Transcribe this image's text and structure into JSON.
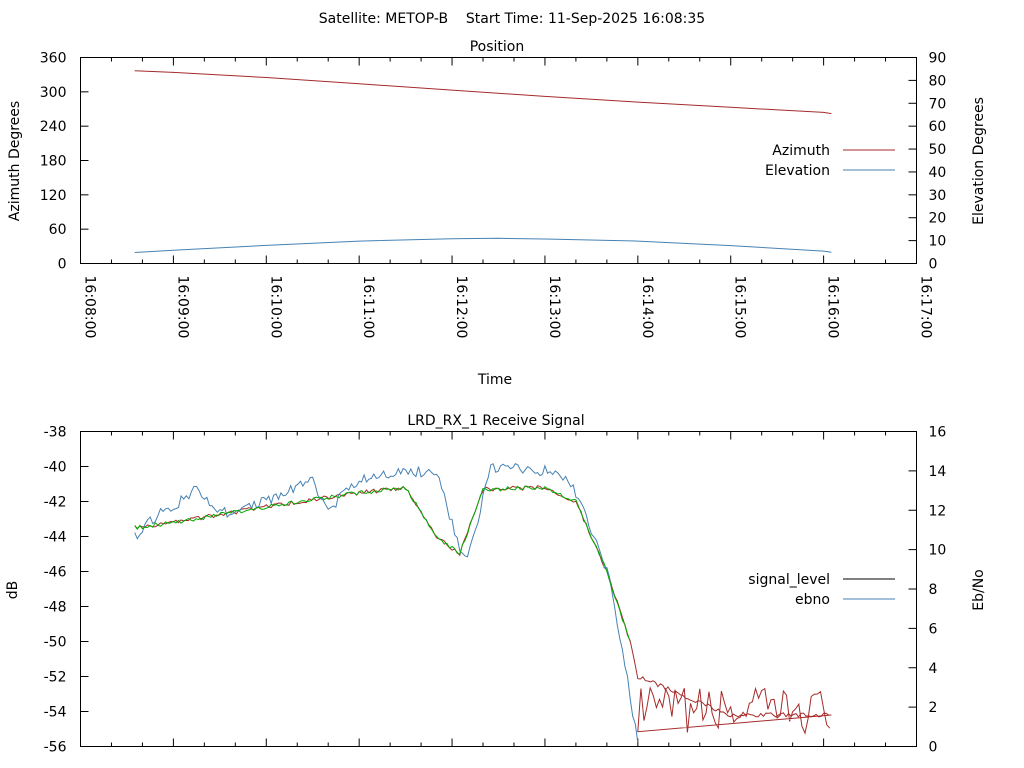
{
  "page_title": "Satellite: METOP-B    Start Time: 11-Sep-2025 16:08:35",
  "chart_data": [
    {
      "type": "line",
      "title": "Position",
      "xlabel": "Time",
      "ylabel": "Azimuth Degrees",
      "y2label": "Elevation Degrees",
      "xlim": [
        "16:08:00",
        "16:17:00"
      ],
      "x_ticks": [
        "16:08:00",
        "16:09:00",
        "16:10:00",
        "16:11:00",
        "16:12:00",
        "16:13:00",
        "16:14:00",
        "16:15:00",
        "16:16:00",
        "16:17:00"
      ],
      "ylim": [
        0,
        360
      ],
      "y_ticks": [
        "0",
        "60",
        "120",
        "180",
        "240",
        "300",
        "360"
      ],
      "y2lim": [
        0,
        90
      ],
      "y2_ticks": [
        "0",
        "10",
        "20",
        "30",
        "40",
        "50",
        "60",
        "70",
        "80",
        "90"
      ],
      "grid": false,
      "legend": "right",
      "series": [
        {
          "name": "Azimuth",
          "axis": "y",
          "color": "#a52a2a",
          "x": [
            "16:08:35",
            "16:09:00",
            "16:10:00",
            "16:11:00",
            "16:12:00",
            "16:13:00",
            "16:14:00",
            "16:15:00",
            "16:16:00",
            "16:16:05"
          ],
          "values": [
            337,
            334,
            325,
            314,
            303,
            292,
            282,
            273,
            264,
            262
          ]
        },
        {
          "name": "Elevation",
          "axis": "y2",
          "color": "#4682b4",
          "x": [
            "16:08:35",
            "16:09:00",
            "16:10:00",
            "16:11:00",
            "16:12:00",
            "16:12:30",
            "16:13:00",
            "16:14:00",
            "16:15:00",
            "16:16:00",
            "16:16:05"
          ],
          "values": [
            4.8,
            5.8,
            7.9,
            9.8,
            10.8,
            11.0,
            10.7,
            9.8,
            7.8,
            5.4,
            4.9
          ]
        }
      ]
    },
    {
      "type": "line",
      "title": "LRD_RX_1 Receive Signal",
      "xlabel": "",
      "ylabel": "dB",
      "y2label": "Eb/No",
      "xlim": [
        "16:08:00",
        "16:17:00"
      ],
      "ylim": [
        -56,
        -38
      ],
      "y_ticks": [
        "-56",
        "-54",
        "-52",
        "-50",
        "-48",
        "-46",
        "-44",
        "-42",
        "-40",
        "-38"
      ],
      "y2lim": [
        0,
        16
      ],
      "y2_ticks": [
        "0",
        "2",
        "4",
        "6",
        "8",
        "10",
        "12",
        "14",
        "16"
      ],
      "grid": false,
      "legend": "right",
      "series": [
        {
          "name": "signal_level",
          "axis": "y",
          "color": "#a52a2a",
          "x": [
            "16:08:35",
            "16:09:00",
            "16:10:00",
            "16:11:00",
            "16:11:30",
            "16:11:50",
            "16:12:05",
            "16:12:20",
            "16:13:00",
            "16:13:20",
            "16:13:40",
            "16:13:55",
            "16:14:00",
            "16:15:00",
            "16:16:00",
            "16:16:05"
          ],
          "values": [
            -43.5,
            -43.2,
            -42.3,
            -41.5,
            -41.2,
            -44.0,
            -45.0,
            -41.3,
            -41.2,
            -42.0,
            -46.0,
            -50.0,
            -52.0,
            -54.2,
            -54.2,
            -54.2
          ]
        },
        {
          "name": "ebno",
          "axis": "y2",
          "color": "#4682b4",
          "x": [
            "16:08:35",
            "16:08:50",
            "16:09:00",
            "16:09:15",
            "16:09:30",
            "16:10:00",
            "16:10:30",
            "16:10:40",
            "16:11:00",
            "16:11:30",
            "16:11:50",
            "16:12:05",
            "16:12:10",
            "16:12:25",
            "16:13:00",
            "16:13:15",
            "16:13:25",
            "16:13:40",
            "16:13:50",
            "16:14:00"
          ],
          "values": [
            10.6,
            11.8,
            12.2,
            13.1,
            11.8,
            12.5,
            13.5,
            12.0,
            13.6,
            14.0,
            13.9,
            10.0,
            9.5,
            14.2,
            14.0,
            13.6,
            12.0,
            9.0,
            5.0,
            0.2
          ]
        },
        {
          "name": "",
          "color": "#00aa00",
          "x": [
            "16:08:35",
            "16:09:00",
            "16:10:00",
            "16:11:00",
            "16:11:30",
            "16:11:50",
            "16:12:05",
            "16:12:20",
            "16:13:00",
            "16:13:20",
            "16:13:40",
            "16:13:55"
          ],
          "values": [
            -43.5,
            -43.2,
            -42.3,
            -41.5,
            -41.2,
            -44.0,
            -45.0,
            -41.3,
            -41.2,
            -42.0,
            -46.0,
            -50.0
          ]
        }
      ]
    }
  ]
}
